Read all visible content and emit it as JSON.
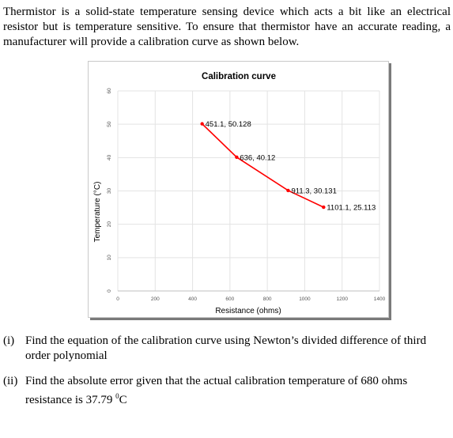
{
  "intro_text": "Thermistor is a solid-state temperature sensing device which acts a bit like an electrical resistor but is temperature sensitive. To ensure that thermistor have an accurate reading, a manufacturer will provide a calibration curve as shown below.",
  "questions": [
    {
      "number": "(i)",
      "text": "Find the equation of the calibration curve using Newton’s divided difference of third order polynomial"
    },
    {
      "number": "(ii)",
      "text_before": "Find the absolute error given that the actual calibration temperature of 680 ohms resistance is 37.79 ",
      "unit_sup": "0",
      "unit": "C"
    }
  ],
  "chart_data": {
    "type": "line",
    "title": "Calibration curve",
    "xlabel": "Resistance (ohms)",
    "ylabel": "Temperature (°C)",
    "xlim": [
      0,
      1400
    ],
    "ylim": [
      0,
      60
    ],
    "x_ticks": [
      0,
      200,
      400,
      600,
      800,
      1000,
      1200,
      1400
    ],
    "y_ticks": [
      0,
      10,
      20,
      30,
      40,
      50,
      60
    ],
    "grid": true,
    "series_color": "#ff0000",
    "points": [
      {
        "x": 451.1,
        "y": 50.128,
        "label": "451.1, 50.128"
      },
      {
        "x": 636,
        "y": 40.12,
        "label": "636, 40.12"
      },
      {
        "x": 911.3,
        "y": 30.131,
        "label": "911.3, 30.131"
      },
      {
        "x": 1101.1,
        "y": 25.113,
        "label": "1101.1, 25.113"
      }
    ]
  }
}
